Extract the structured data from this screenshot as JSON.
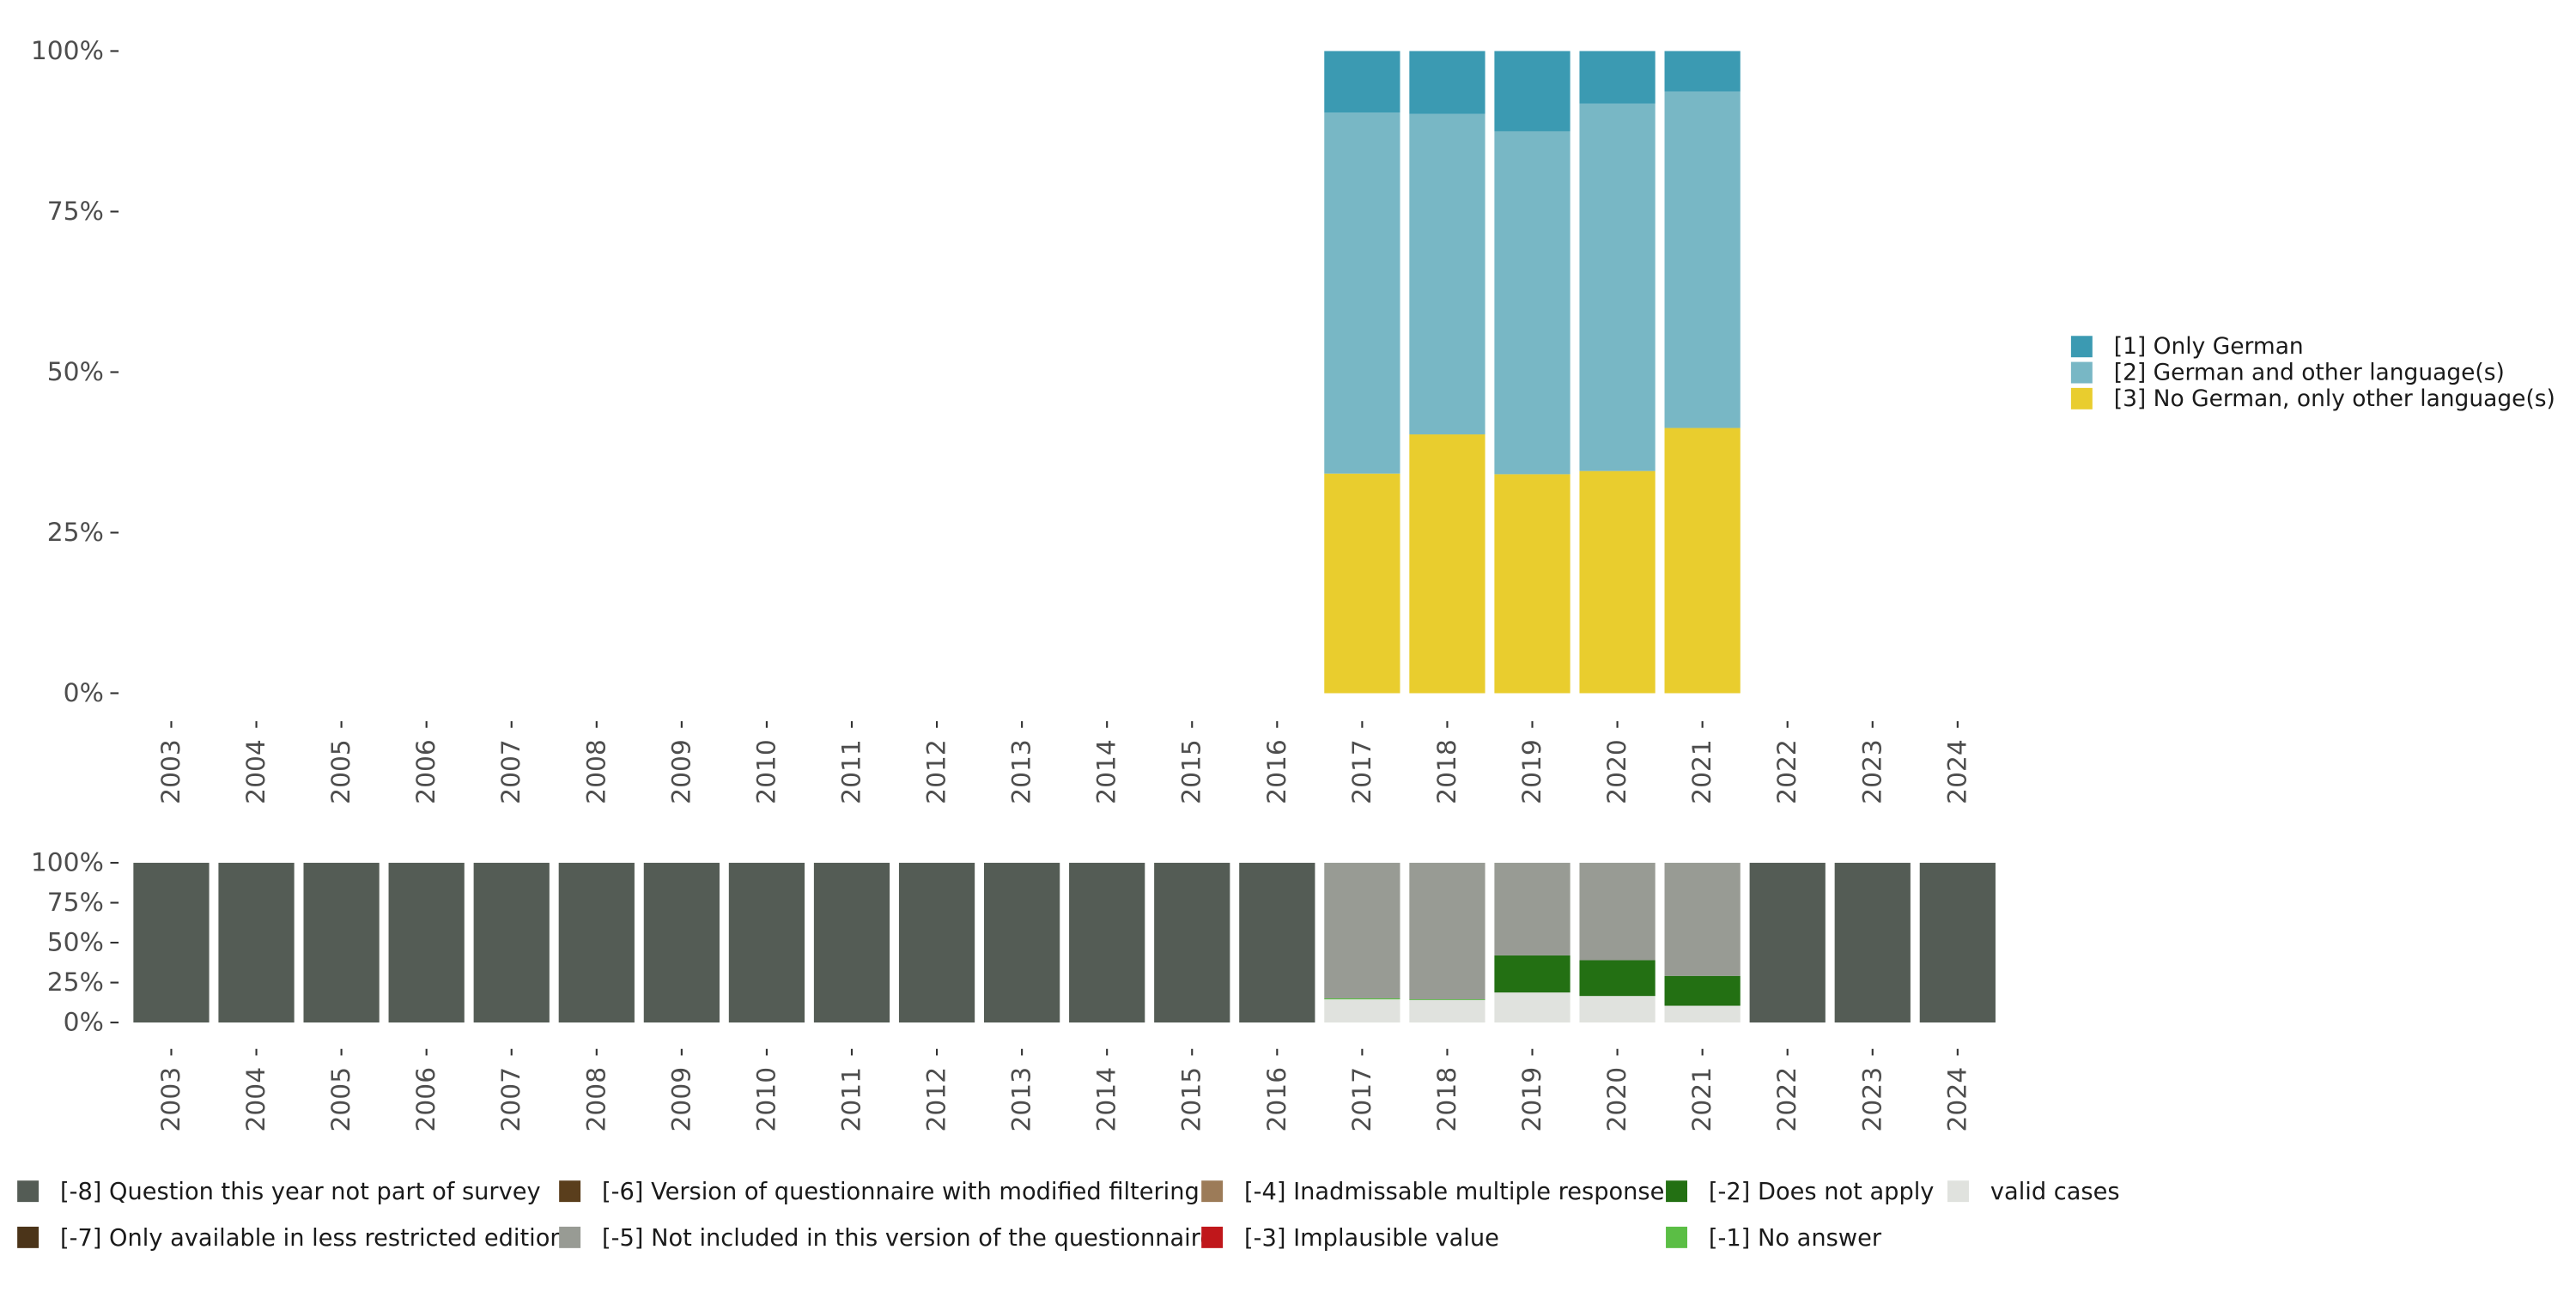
{
  "chart_data": [
    {
      "type": "bar",
      "stacked": true,
      "categories": [
        "2003",
        "2004",
        "2005",
        "2006",
        "2007",
        "2008",
        "2009",
        "2010",
        "2011",
        "2012",
        "2013",
        "2014",
        "2015",
        "2016",
        "2017",
        "2018",
        "2019",
        "2020",
        "2021",
        "2022",
        "2023",
        "2024"
      ],
      "y_tick_labels": [
        "0%",
        "25%",
        "50%",
        "75%",
        "100%"
      ],
      "ylim": [
        0,
        100
      ],
      "grid": false,
      "legend_position": "right",
      "series": [
        {
          "name": "[3] No German, only other language(s)",
          "color": "#e9cd2e",
          "values": [
            null,
            null,
            null,
            null,
            null,
            null,
            null,
            null,
            null,
            null,
            null,
            null,
            null,
            null,
            34.2,
            40.3,
            34.1,
            34.6,
            41.3,
            null,
            null,
            null
          ]
        },
        {
          "name": "[2] German and other language(s)",
          "color": "#78b7c5",
          "values": [
            null,
            null,
            null,
            null,
            null,
            null,
            null,
            null,
            null,
            null,
            null,
            null,
            null,
            null,
            56.2,
            49.9,
            53.4,
            57.2,
            52.4,
            null,
            null,
            null
          ]
        },
        {
          "name": "[1] Only German",
          "color": "#3b9ab2",
          "values": [
            null,
            null,
            null,
            null,
            null,
            null,
            null,
            null,
            null,
            null,
            null,
            null,
            null,
            null,
            9.6,
            9.8,
            12.5,
            8.2,
            6.3,
            null,
            null,
            null
          ]
        }
      ]
    },
    {
      "type": "bar",
      "stacked": true,
      "categories": [
        "2003",
        "2004",
        "2005",
        "2006",
        "2007",
        "2008",
        "2009",
        "2010",
        "2011",
        "2012",
        "2013",
        "2014",
        "2015",
        "2016",
        "2017",
        "2018",
        "2019",
        "2020",
        "2021",
        "2022",
        "2023",
        "2024"
      ],
      "y_tick_labels": [
        "0%",
        "25%",
        "50%",
        "75%",
        "100%"
      ],
      "ylim": [
        0,
        100
      ],
      "grid": false,
      "legend_position": "bottom",
      "series": [
        {
          "name": "valid cases",
          "color": "#e0e2de",
          "values": [
            0,
            0,
            0,
            0,
            0,
            0,
            0,
            0,
            0,
            0,
            0,
            0,
            0,
            0,
            14.5,
            14.0,
            18.8,
            16.6,
            10.5,
            0,
            0,
            0
          ]
        },
        {
          "name": "[-1] No answer",
          "color": "#5bbe45",
          "values": [
            0,
            0,
            0,
            0,
            0,
            0,
            0,
            0,
            0,
            0,
            0,
            0,
            0,
            0,
            0.6,
            0.5,
            0,
            0,
            0,
            0,
            0,
            0
          ]
        },
        {
          "name": "[-2] Does not apply",
          "color": "#237013",
          "values": [
            0,
            0,
            0,
            0,
            0,
            0,
            0,
            0,
            0,
            0,
            0,
            0,
            0,
            0,
            0,
            0,
            23.2,
            22.4,
            18.7,
            0,
            0,
            0
          ]
        },
        {
          "name": "[-3] Implausible value",
          "color": "#c0171b",
          "values": [
            0,
            0,
            0,
            0,
            0,
            0,
            0,
            0,
            0,
            0,
            0,
            0,
            0,
            0,
            0,
            0,
            0,
            0,
            0,
            0,
            0,
            0
          ]
        },
        {
          "name": "[-4] Inadmissable multiple response",
          "color": "#9c7b58",
          "values": [
            0,
            0,
            0,
            0,
            0,
            0,
            0,
            0,
            0,
            0,
            0,
            0,
            0,
            0,
            0,
            0,
            0,
            0,
            0,
            0,
            0,
            0
          ]
        },
        {
          "name": "[-5] Not included in this version of the questionnaire",
          "color": "#989b94",
          "values": [
            0,
            0,
            0,
            0,
            0,
            0,
            0,
            0,
            0,
            0,
            0,
            0,
            0,
            0,
            84.9,
            85.5,
            58.0,
            61.0,
            70.8,
            0,
            0,
            0
          ]
        },
        {
          "name": "[-6] Version of questionnaire with modified filtering",
          "color": "#5a3e1c",
          "values": [
            0,
            0,
            0,
            0,
            0,
            0,
            0,
            0,
            0,
            0,
            0,
            0,
            0,
            0,
            0,
            0,
            0,
            0,
            0,
            0,
            0,
            0
          ]
        },
        {
          "name": "[-7] Only available in less restricted edition",
          "color": "#4b3419",
          "values": [
            0,
            0,
            0,
            0,
            0,
            0,
            0,
            0,
            0,
            0,
            0,
            0,
            0,
            0,
            0,
            0,
            0,
            0,
            0,
            0,
            0,
            0
          ]
        },
        {
          "name": "[-8] Question this year not part of survey",
          "color": "#545c55",
          "values": [
            100,
            100,
            100,
            100,
            100,
            100,
            100,
            100,
            100,
            100,
            100,
            100,
            100,
            100,
            0,
            0,
            0,
            0,
            0,
            100,
            100,
            100
          ]
        }
      ]
    }
  ]
}
